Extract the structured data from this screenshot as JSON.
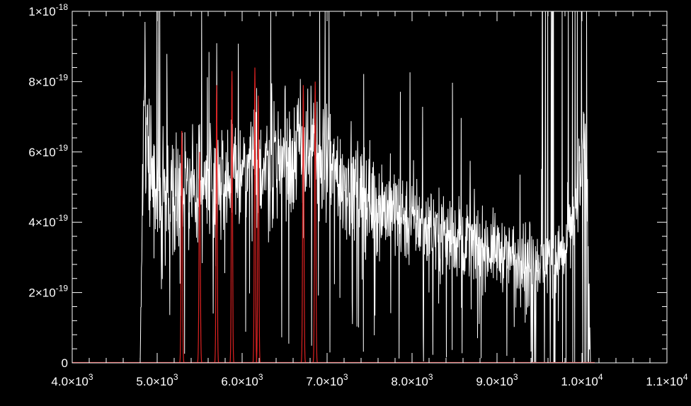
{
  "chart_data": {
    "type": "line",
    "title": "",
    "xlabel": "",
    "ylabel": "",
    "xlim": [
      4000,
      11000
    ],
    "ylim": [
      0,
      1e-18
    ],
    "grid": false,
    "legend": "none",
    "colors": {
      "background": "#000000",
      "axes": "#ffffff",
      "spectrum": "#ffffff",
      "filters": "#dd2222"
    },
    "x_ticks": [
      {
        "mant": "4.0",
        "exp": "3"
      },
      {
        "mant": "5.0",
        "exp": "3"
      },
      {
        "mant": "6.0",
        "exp": "3"
      },
      {
        "mant": "7.0",
        "exp": "3"
      },
      {
        "mant": "8.0",
        "exp": "3"
      },
      {
        "mant": "9.0",
        "exp": "3"
      },
      {
        "mant": "1.0",
        "exp": "4"
      },
      {
        "mant": "1.1",
        "exp": "4"
      }
    ],
    "y_ticks": [
      {
        "mant": "0",
        "exp": ""
      },
      {
        "mant": "2",
        "exp": "-19"
      },
      {
        "mant": "4",
        "exp": "-19"
      },
      {
        "mant": "6",
        "exp": "-19"
      },
      {
        "mant": "8",
        "exp": "-19"
      },
      {
        "mant": "1",
        "exp": "-18"
      }
    ],
    "spectrum_trend": {
      "x": [
        4800,
        4850,
        4900,
        5000,
        5200,
        5400,
        5600,
        5800,
        6000,
        6200,
        6400,
        6600,
        6800,
        7000,
        7200,
        7400,
        7600,
        7800,
        8000,
        8200,
        8400,
        8600,
        8800,
        9000,
        9200,
        9400,
        9600,
        9800,
        9900,
        10000,
        10050,
        10100
      ],
      "y": [
        0,
        8e-19,
        6e-19,
        5e-19,
        4.8e-19,
        5e-19,
        5.2e-19,
        5.3e-19,
        5.4e-19,
        5.6e-19,
        5.8e-19,
        6e-19,
        6.1e-19,
        5.6e-19,
        5.2e-19,
        4.8e-19,
        4.5e-19,
        4.3e-19,
        4.1e-19,
        3.9e-19,
        3.7e-19,
        3.5e-19,
        3.3e-19,
        3.2e-19,
        3e-19,
        3e-19,
        2.9e-19,
        3.2e-19,
        4e-19,
        5.5e-19,
        7e-19,
        0
      ]
    },
    "filter_lines": [
      {
        "center": 5290,
        "height": 6.6e-19,
        "width": 20
      },
      {
        "center": 5500,
        "height": 6e-19,
        "width": 20
      },
      {
        "center": 5700,
        "height": 7.9e-19,
        "width": 18
      },
      {
        "center": 5880,
        "height": 8.3e-19,
        "width": 18
      },
      {
        "center": 6150,
        "height": 8.4e-19,
        "width": 18
      },
      {
        "center": 6190,
        "height": 7.6e-19,
        "width": 18
      },
      {
        "center": 6720,
        "height": 7.9e-19,
        "width": 20
      },
      {
        "center": 6860,
        "height": 8e-19,
        "width": 20
      }
    ]
  }
}
